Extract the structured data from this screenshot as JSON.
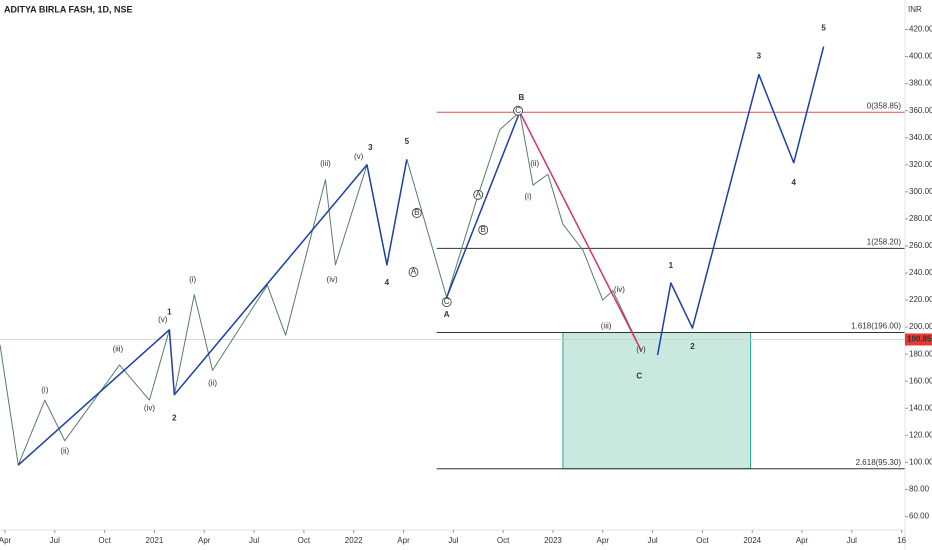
{
  "chart_data": {
    "type": "line",
    "title": "ADITYA BIRLA FASH, 1D, NSE",
    "y_unit": "INR",
    "xlim": [
      2.7,
      57.2
    ],
    "ylim": [
      50,
      430
    ],
    "xticks": [
      {
        "value": 3,
        "label": "Apr"
      },
      {
        "value": 6,
        "label": "Jul"
      },
      {
        "value": 9,
        "label": "Oct"
      },
      {
        "value": 12,
        "label": "2021"
      },
      {
        "value": 15,
        "label": "Apr"
      },
      {
        "value": 18,
        "label": "Jul"
      },
      {
        "value": 21,
        "label": "Oct"
      },
      {
        "value": 24,
        "label": "2022"
      },
      {
        "value": 27,
        "label": "Apr"
      },
      {
        "value": 30,
        "label": "Jul"
      },
      {
        "value": 33,
        "label": "Oct"
      },
      {
        "value": 36,
        "label": "2023"
      },
      {
        "value": 39,
        "label": "Apr"
      },
      {
        "value": 42,
        "label": "Jul"
      },
      {
        "value": 45,
        "label": "Oct"
      },
      {
        "value": 48,
        "label": "2024"
      },
      {
        "value": 51,
        "label": "Apr"
      },
      {
        "value": 54,
        "label": "Jul"
      },
      {
        "value": 57,
        "label": "16"
      }
    ],
    "yticks": [
      {
        "value": 60,
        "label": "60.00"
      },
      {
        "value": 80,
        "label": "80.00"
      },
      {
        "value": 100,
        "label": "100.00"
      },
      {
        "value": 120,
        "label": "120.00"
      },
      {
        "value": 140,
        "label": "140.00"
      },
      {
        "value": 160,
        "label": "160.00"
      },
      {
        "value": 180,
        "label": "180.00"
      },
      {
        "value": 200,
        "label": "200.00"
      },
      {
        "value": 220,
        "label": "220.00"
      },
      {
        "value": 240,
        "label": "240.00"
      },
      {
        "value": 260,
        "label": "260.00"
      },
      {
        "value": 280,
        "label": "280.00"
      },
      {
        "value": 300,
        "label": "300.00"
      },
      {
        "value": 320,
        "label": "320.00"
      },
      {
        "value": 340,
        "label": "340.00"
      },
      {
        "value": 360,
        "label": "360.00"
      },
      {
        "value": 380,
        "label": "380.00"
      },
      {
        "value": 400,
        "label": "400.00"
      },
      {
        "value": 420,
        "label": "420.00"
      }
    ],
    "series": [
      {
        "color": "#5a7d6a",
        "x": [
          2.7,
          3.8,
          5.4,
          6.6,
          9.9,
          11.7,
          12.9,
          13.2,
          14.4,
          15.5,
          18.8,
          19.9,
          22.3,
          22.9,
          24.8,
          26,
          27.2,
          29.6,
          31.4,
          32.8,
          34,
          34.8,
          35.7,
          36.6,
          37.8,
          39,
          39.6,
          41
        ],
        "values": [
          187,
          98,
          146,
          116,
          172,
          146,
          198,
          150,
          224,
          168,
          231,
          194,
          309,
          246,
          320,
          246,
          324,
          222,
          294,
          346,
          359,
          305,
          313,
          276,
          257,
          220,
          227,
          190.85
        ]
      },
      {
        "color": "#1c3fa8",
        "x": [
          3.8,
          12.9,
          13.2,
          24.8,
          26,
          27.2
        ],
        "values": [
          98,
          198,
          150,
          320,
          246,
          324
        ]
      },
      {
        "color": "#1c3fa8",
        "x": [
          29.6,
          34
        ],
        "values": [
          222,
          359
        ]
      },
      {
        "color": "#d6336c",
        "x": [
          34,
          41.3
        ],
        "values": [
          359,
          183
        ]
      },
      {
        "color": "#1c3fa8",
        "x": [
          42.3,
          43.1,
          44.4,
          48.4,
          50.5,
          52.3
        ],
        "values": [
          179.3,
          232.6,
          199.3,
          386.7,
          321.5,
          407.4
        ]
      }
    ],
    "fib_levels": [
      {
        "value": 358.85,
        "label": "0(358.85)",
        "color": "#e05050"
      },
      {
        "value": 258.2,
        "label": "1(258.20)",
        "color": "#333333"
      },
      {
        "value": 196,
        "label": "1.618(196.00)",
        "color": "#333333"
      },
      {
        "value": 95.3,
        "label": "2.618(95.30)",
        "color": "#333333"
      }
    ],
    "fib_start": 29.0,
    "target_box": {
      "x": [
        36.6,
        47.9
      ],
      "y": [
        95.3,
        196
      ],
      "color": "#b2dfd2"
    },
    "last_price": 190.85,
    "last_price_color": "#e53935",
    "annotations": [
      {
        "text": "1",
        "x": 12.9,
        "y": 211,
        "color": "#1c3fa8"
      },
      {
        "text": "2",
        "x": 13.2,
        "y": 132.6,
        "color": "#1c3fa8"
      },
      {
        "text": "3",
        "x": 25,
        "y": 332.6,
        "color": "#1c3fa8"
      },
      {
        "text": "4",
        "x": 26,
        "y": 232.6,
        "color": "#1c3fa8"
      },
      {
        "text": "5",
        "x": 27.2,
        "y": 337,
        "color": "#1c3fa8"
      },
      {
        "text": "A",
        "x": 29.6,
        "y": 209,
        "color": "#c2185b"
      },
      {
        "text": "B",
        "x": 34.1,
        "y": 369.6,
        "color": "#c2185b"
      },
      {
        "text": "C",
        "x": 41.2,
        "y": 163.7,
        "color": "#c2185b"
      },
      {
        "text": "1",
        "x": 43.1,
        "y": 245.2,
        "color": "#1c3fa8"
      },
      {
        "text": "2",
        "x": 44.4,
        "y": 185.2,
        "color": "#1c3fa8"
      },
      {
        "text": "3",
        "x": 48.4,
        "y": 400,
        "color": "#1c3fa8"
      },
      {
        "text": "4",
        "x": 50.5,
        "y": 306.7,
        "color": "#1c3fa8"
      },
      {
        "text": "5",
        "x": 52.3,
        "y": 420.7,
        "color": "#1c3fa8"
      },
      {
        "text": "(i)",
        "x": 5.4,
        "y": 153.3,
        "color": "#333333"
      },
      {
        "text": "(ii)",
        "x": 6.6,
        "y": 108.1,
        "color": "#333333"
      },
      {
        "text": "(iii)",
        "x": 9.8,
        "y": 183.7,
        "color": "#333333"
      },
      {
        "text": "(iv)",
        "x": 11.7,
        "y": 140,
        "color": "#333333"
      },
      {
        "text": "(v)",
        "x": 12.5,
        "y": 205.2,
        "color": "#333333"
      },
      {
        "text": "(i)",
        "x": 14.3,
        "y": 234.8,
        "color": "#333333"
      },
      {
        "text": "(ii)",
        "x": 15.5,
        "y": 158.5,
        "color": "#333333"
      },
      {
        "text": "(iii)",
        "x": 22.3,
        "y": 320.7,
        "color": "#333333"
      },
      {
        "text": "(iv)",
        "x": 22.7,
        "y": 234.8,
        "color": "#333333"
      },
      {
        "text": "(v)",
        "x": 24.3,
        "y": 325.9,
        "color": "#333333"
      },
      {
        "text": "(i)",
        "x": 34.5,
        "y": 296.3,
        "color": "#333333"
      },
      {
        "text": "(ii)",
        "x": 34.9,
        "y": 320.7,
        "color": "#333333"
      },
      {
        "text": "(iii)",
        "x": 39.2,
        "y": 200.7,
        "color": "#333333"
      },
      {
        "text": "(iv)",
        "x": 40,
        "y": 227.4,
        "color": "#333333"
      },
      {
        "text": "(v)",
        "x": 41.3,
        "y": 183,
        "color": "#333333"
      },
      {
        "text": "A",
        "x": 27.6,
        "y": 240.7,
        "color": "#333333",
        "circled": true
      },
      {
        "text": "B",
        "x": 27.8,
        "y": 284.4,
        "color": "#333333",
        "circled": true
      },
      {
        "text": "C",
        "x": 29.6,
        "y": 218.5,
        "color": "#333333",
        "circled": true
      },
      {
        "text": "A",
        "x": 31.5,
        "y": 297.8,
        "color": "#333333",
        "circled": true
      },
      {
        "text": "B",
        "x": 31.8,
        "y": 271.9,
        "color": "#333333",
        "circled": true
      },
      {
        "text": "C",
        "x": 33.9,
        "y": 360,
        "color": "#333333",
        "circled": true
      }
    ]
  }
}
